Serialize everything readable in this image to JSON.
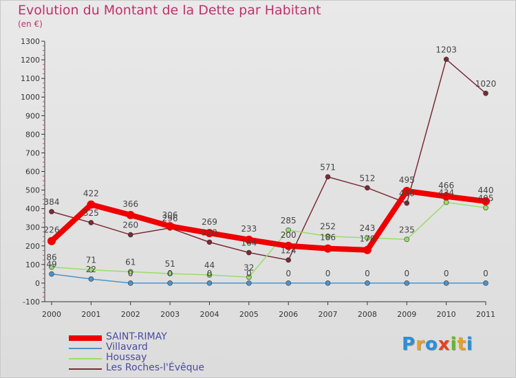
{
  "header": {
    "title": "Evolution du Montant de la Dette par Habitant",
    "subtitle": "(en €)"
  },
  "logo": {
    "text": "Proxiti"
  },
  "chart_data": {
    "type": "line",
    "title": "Evolution du Montant de la Dette par Habitant",
    "subtitle": "(en €)",
    "xlabel": "",
    "ylabel": "",
    "x": [
      "2000",
      "2001",
      "2002",
      "2003",
      "2004",
      "2005",
      "2006",
      "2007",
      "2008",
      "2009",
      "2010",
      "2011"
    ],
    "ylim": [
      -100,
      1300
    ],
    "yticks": [
      "-100",
      "0",
      "100",
      "200",
      "300",
      "400",
      "500",
      "600",
      "700",
      "800",
      "900",
      "1000",
      "1100",
      "1200",
      "1300"
    ],
    "grid": false,
    "legend_position": "bottom-left",
    "series": [
      {
        "name": "SAINT-RIMAY",
        "color": "#ee0000",
        "values": [
          226,
          422,
          366,
          306,
          269,
          233,
          200,
          186,
          178,
          495,
          466,
          440
        ],
        "labels": [
          "226",
          "422",
          "366",
          "306",
          "269",
          "233",
          "200",
          "186",
          "178",
          "495",
          "466",
          "440"
        ]
      },
      {
        "name": "Villavard",
        "color": "#4d92c9",
        "values": [
          49,
          22,
          0,
          0,
          0,
          0,
          0,
          0,
          0,
          0,
          0,
          0
        ],
        "labels": [
          "49",
          "22",
          "0",
          "0",
          "0",
          "0",
          "0",
          "0",
          "0",
          "0",
          "0",
          "0"
        ]
      },
      {
        "name": "Houssay",
        "color": "#99dd66",
        "values": [
          86,
          71,
          61,
          51,
          44,
          32,
          285,
          252,
          243,
          235,
          434,
          405
        ],
        "labels": [
          "86",
          "71",
          "61",
          "51",
          "44",
          "32",
          "285",
          "252",
          "243",
          "235",
          "434",
          "405"
        ]
      },
      {
        "name": "Les Roches-l'Évêque",
        "color": "#7a2a35",
        "values": [
          384,
          325,
          260,
          296,
          220,
          164,
          124,
          571,
          512,
          430,
          1203,
          1020
        ],
        "labels": [
          "384",
          "325",
          "260",
          "296",
          "220",
          "164",
          "124",
          "571",
          "512",
          "430",
          "1203",
          "1020"
        ]
      }
    ]
  }
}
